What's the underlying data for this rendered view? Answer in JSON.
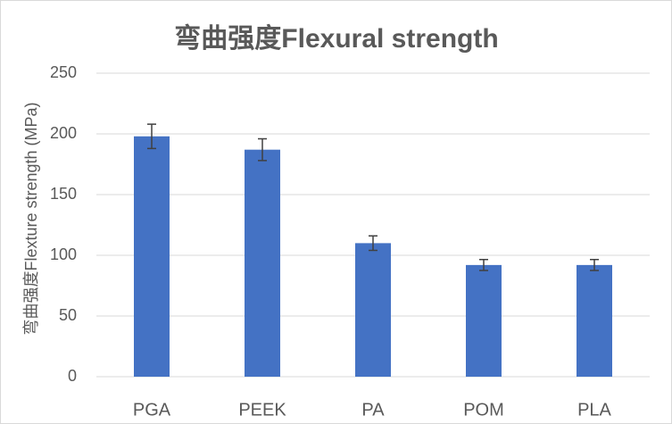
{
  "chart_data": {
    "type": "bar",
    "title": "弯曲强度Flexural strength",
    "y_label": "弯曲强度Flexture strength (MPa)",
    "categories": [
      "PGA",
      "PEEK",
      "PA",
      "POM",
      "PLA"
    ],
    "values": [
      198,
      187,
      110,
      92,
      92
    ],
    "errors": [
      10,
      9,
      6,
      4.5,
      4.5
    ],
    "color": "#4472c4",
    "ylim": [
      0,
      250
    ],
    "yticks": [
      0,
      50,
      100,
      150,
      200,
      250
    ],
    "grid": true
  }
}
